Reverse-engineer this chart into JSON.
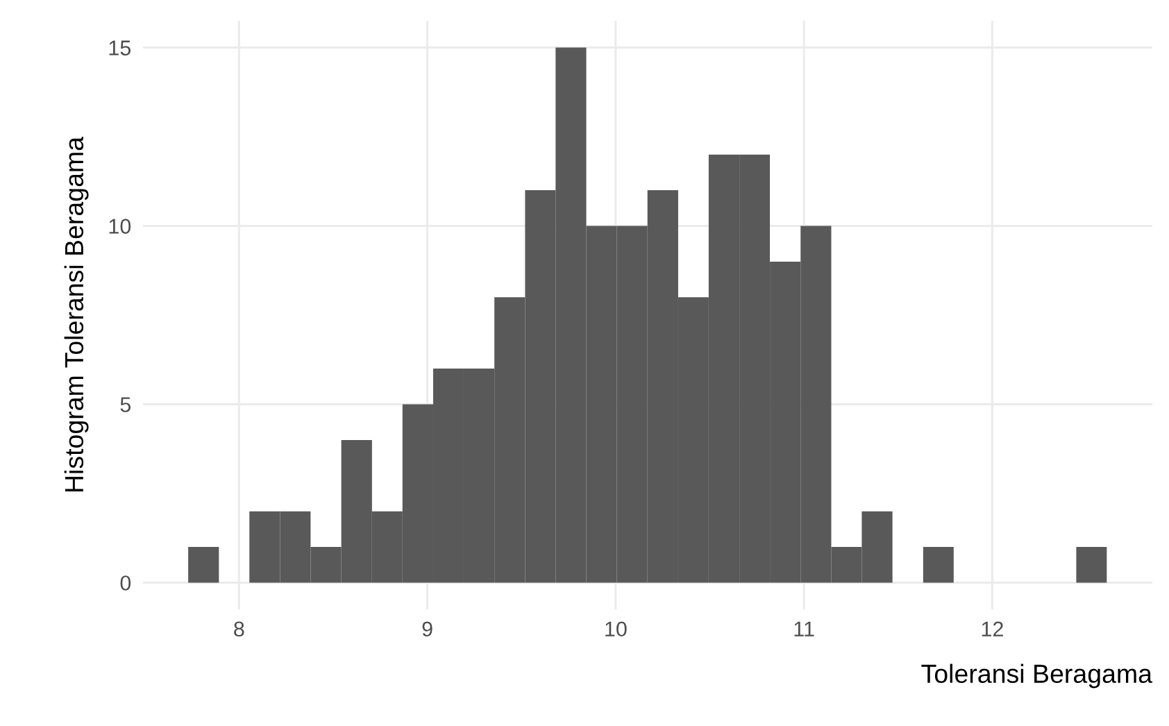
{
  "chart_data": {
    "type": "histogram",
    "xlabel": "Toleransi Beragama",
    "ylabel": "Histogram Toleransi Beragama",
    "bins": [
      7.73,
      7.893,
      8.055,
      8.218,
      8.38,
      8.543,
      8.706,
      8.868,
      9.031,
      9.193,
      9.356,
      9.519,
      9.681,
      9.844,
      10.006,
      10.169,
      10.332,
      10.494,
      10.657,
      10.819,
      10.982,
      11.145,
      11.307,
      11.47,
      11.633,
      11.795,
      11.958,
      12.12,
      12.283,
      12.446,
      12.608
    ],
    "values": [
      1,
      0,
      2,
      2,
      1,
      4,
      2,
      5,
      6,
      6,
      8,
      11,
      15,
      10,
      10,
      11,
      8,
      12,
      12,
      9,
      10,
      1,
      2,
      0,
      1,
      0,
      0,
      0,
      0,
      1
    ],
    "color": "#595959",
    "xlim": [
      7.49,
      12.85
    ],
    "ylim": [
      -0.75,
      15.75
    ],
    "xticks": [
      8,
      9,
      10,
      11,
      12
    ],
    "yticks": [
      0,
      5,
      10,
      15
    ],
    "grid": true
  }
}
